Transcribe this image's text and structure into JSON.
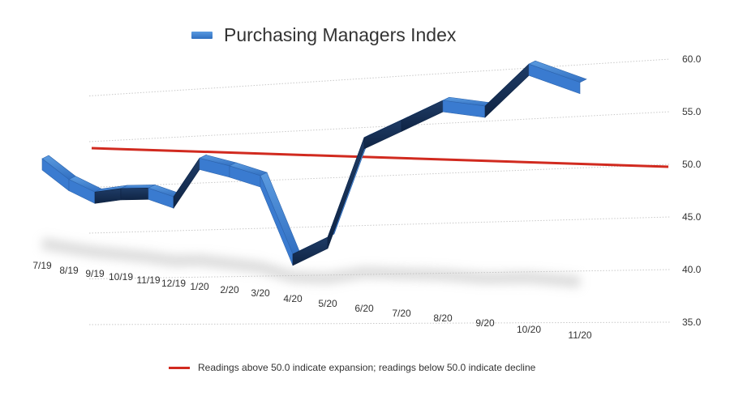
{
  "chart_data": {
    "type": "line",
    "title": "Purchasing Managers Index",
    "categories": [
      "7/19",
      "8/19",
      "9/19",
      "10/19",
      "11/19",
      "12/19",
      "1/20",
      "2/20",
      "3/20",
      "4/20",
      "5/20",
      "6/20",
      "7/20",
      "8/20",
      "9/20",
      "10/20",
      "11/20"
    ],
    "series": [
      {
        "name": "Purchasing Managers Index",
        "values": [
          51.2,
          49.1,
          47.8,
          48.1,
          48.1,
          47.2,
          50.9,
          50.1,
          49.1,
          41.5,
          43.1,
          52.6,
          54.2,
          56.0,
          55.4,
          59.3,
          57.5
        ],
        "color": "#3a7fd0"
      },
      {
        "name": "Readings above 50.0 indicate expansion; readings below 50.0 indicate decline",
        "values": [
          50,
          50,
          50,
          50,
          50,
          50,
          50,
          50,
          50,
          50,
          50,
          50,
          50,
          50,
          50,
          50,
          50
        ],
        "color": "#d12a1f"
      }
    ],
    "yticks": [
      "60.0",
      "55.0",
      "50.0",
      "45.0",
      "40.0",
      "35.0"
    ],
    "ylim": [
      35,
      60
    ],
    "legend_position": "top",
    "grid": true
  }
}
